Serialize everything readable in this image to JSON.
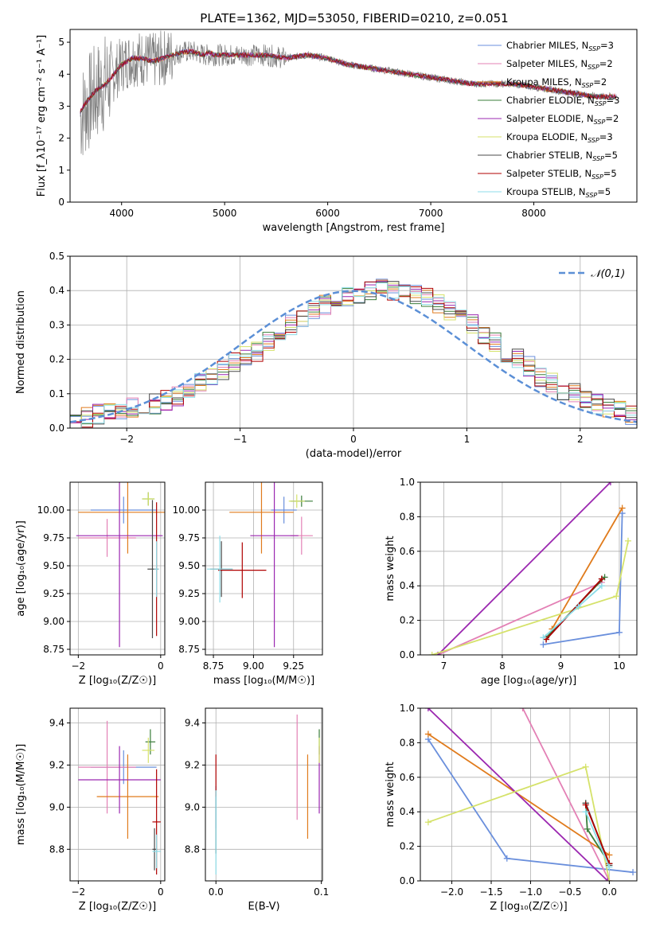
{
  "figure_title": "PLATE=1362, MJD=53050, FIBERID=0210, z=0.051",
  "series_colors": [
    "#6a8fdc",
    "#e380b5",
    "#e07b1c",
    "#3a7d3a",
    "#9b27b0",
    "#d5e26a",
    "#4a4a4a",
    "#b00000",
    "#8ddde8"
  ],
  "chart_data": [
    {
      "id": "spectrum",
      "type": "line",
      "xlabel": "wavelength [Angstrom, rest frame]",
      "ylabel": "Flux [f_λ10⁻¹⁷ erg cm⁻² s⁻¹ A⁻¹]",
      "xlim": [
        3500,
        9000
      ],
      "ylim": [
        0,
        5.4
      ],
      "xticks": [
        4000,
        5000,
        6000,
        7000,
        8000
      ],
      "yticks": [
        0,
        1,
        2,
        3,
        4,
        5
      ],
      "grid": false,
      "legend_position": "top-right",
      "legend": [
        "Chabrier MILES, N_SSP=3",
        "Salpeter MILES, N_SSP=2",
        "Kroupa MILES, N_SSP=2",
        "Chabrier ELODIE, N_SSP=3",
        "Salpeter ELODIE, N_SSP=2",
        "Kroupa ELODIE, N_SSP=3",
        "Chabrier STELIB, N_SSP=5",
        "Salpeter STELIB, N_SSP=5",
        "Kroupa STELIB, N_SSP=5"
      ],
      "observed": {
        "x": [
          3600,
          3700,
          3800,
          3900,
          4000,
          4100,
          4200,
          4300,
          4400,
          4500,
          4600,
          4700,
          4800,
          4900,
          5000,
          5200,
          5400,
          5600,
          5800,
          6000,
          6200,
          6400,
          6600,
          6800,
          7000,
          7200,
          7400,
          7600,
          7800,
          8000,
          8200,
          8400,
          8600,
          8800
        ],
        "y": [
          2.7,
          3.2,
          3.6,
          3.9,
          4.3,
          4.5,
          4.5,
          4.4,
          4.5,
          4.6,
          4.7,
          4.7,
          4.6,
          4.6,
          4.6,
          4.6,
          4.6,
          4.5,
          4.6,
          4.5,
          4.3,
          4.2,
          4.1,
          4.0,
          3.9,
          3.8,
          3.7,
          3.7,
          3.7,
          3.6,
          3.5,
          3.4,
          3.3,
          3.3
        ]
      },
      "model": {
        "x": [
          3600,
          3650,
          3700,
          3750,
          3800,
          3850,
          3900,
          3950,
          4000,
          4100,
          4200,
          4300,
          4400,
          4500,
          4600,
          4700,
          4800,
          4850,
          4900,
          5000,
          5200,
          5400,
          5600,
          5800,
          6000,
          6200,
          6400,
          6600,
          6800,
          7000,
          7200,
          7400,
          7600,
          7800,
          8000,
          8200,
          8400,
          8600,
          8800
        ],
        "y": [
          2.8,
          3.1,
          3.3,
          3.5,
          3.6,
          3.7,
          3.9,
          4.1,
          4.3,
          4.5,
          4.5,
          4.4,
          4.5,
          4.6,
          4.7,
          4.7,
          4.6,
          4.7,
          4.6,
          4.6,
          4.6,
          4.6,
          4.5,
          4.6,
          4.5,
          4.3,
          4.2,
          4.1,
          4.0,
          3.9,
          3.8,
          3.7,
          3.7,
          3.7,
          3.6,
          3.5,
          3.4,
          3.3,
          3.3
        ]
      }
    },
    {
      "id": "residual-histogram",
      "type": "bar",
      "xlabel": "(data-model)/error",
      "ylabel": "Normed distribution",
      "xlim": [
        -2.5,
        2.5
      ],
      "ylim": [
        0,
        0.5
      ],
      "xticks": [
        -2,
        -1,
        0,
        1,
        2
      ],
      "yticks": [
        0.0,
        0.1,
        0.2,
        0.3,
        0.4,
        0.5
      ],
      "grid": true,
      "legend_position": "top-right",
      "legend": [
        "𝒩(0,1)"
      ],
      "bin_width": 0.1,
      "histogram": [
        0.02,
        0.03,
        0.04,
        0.05,
        0.05,
        0.06,
        0.06,
        0.07,
        0.08,
        0.09,
        0.11,
        0.13,
        0.15,
        0.17,
        0.19,
        0.21,
        0.22,
        0.25,
        0.27,
        0.3,
        0.32,
        0.34,
        0.36,
        0.37,
        0.38,
        0.39,
        0.4,
        0.41,
        0.4,
        0.4,
        0.39,
        0.38,
        0.36,
        0.34,
        0.32,
        0.3,
        0.27,
        0.25,
        0.22,
        0.2,
        0.18,
        0.15,
        0.13,
        0.11,
        0.1,
        0.08,
        0.07,
        0.06,
        0.05,
        0.04
      ]
    },
    {
      "id": "age-vs-metallicity",
      "type": "scatter",
      "xlabel": "Z [log₁₀(Z/Z☉)]",
      "ylabel": "age  [log₁₀(age/yr)]",
      "xlim": [
        -2.2,
        0.1
      ],
      "ylim": [
        8.7,
        10.25
      ],
      "xticks": [
        -2,
        0
      ],
      "yticks": [
        8.75,
        9.0,
        9.25,
        9.5,
        9.75,
        10.0
      ],
      "grid": true,
      "errorbars": [
        {
          "series": 0,
          "x": -0.9,
          "y": 10.0,
          "xerr": 0.8,
          "yerr": 0.12
        },
        {
          "series": 1,
          "x": -1.3,
          "y": 9.75,
          "xerr": 0.7,
          "yerr": 0.17
        },
        {
          "series": 2,
          "x": -0.8,
          "y": 9.98,
          "xerr": 1.2,
          "yerr": 0.37
        },
        {
          "series": 3,
          "x": -0.3,
          "y": 10.1,
          "xerr": 0.15,
          "yerr": 0.06
        },
        {
          "series": 4,
          "x": -1.0,
          "y": 9.77,
          "xerr": 1.05,
          "yerr": 1.0
        },
        {
          "series": 5,
          "x": -0.3,
          "y": 10.1,
          "xerr": 0.15,
          "yerr": 0.06
        },
        {
          "series": 6,
          "x": -0.2,
          "y": 9.47,
          "xerr": 0.12,
          "yerr": 0.62
        },
        {
          "series": 7,
          "x": -0.1,
          "y": 9.47,
          "xerr": 0.05,
          "yerr": 0.6
        },
        {
          "series": 8,
          "x": -0.1,
          "y": 9.47,
          "xerr": 0.06,
          "yerr": 0.25
        }
      ]
    },
    {
      "id": "age-vs-mass",
      "type": "scatter",
      "xlabel": "mass [log₁₀(M/M☉)]",
      "ylabel": "",
      "xlim": [
        8.7,
        9.43
      ],
      "ylim": [
        8.7,
        10.25
      ],
      "xticks": [
        8.75,
        9.0,
        9.25
      ],
      "yticks": [
        8.75,
        9.0,
        9.25,
        9.5,
        9.75,
        10.0
      ],
      "grid": true,
      "errorbars": [
        {
          "series": 0,
          "x": 9.19,
          "y": 10.0,
          "xerr": 0.08,
          "yerr": 0.12
        },
        {
          "series": 1,
          "x": 9.3,
          "y": 9.77,
          "xerr": 0.07,
          "yerr": 0.17
        },
        {
          "series": 2,
          "x": 9.05,
          "y": 9.98,
          "xerr": 0.2,
          "yerr": 0.37
        },
        {
          "series": 3,
          "x": 9.3,
          "y": 10.08,
          "xerr": 0.07,
          "yerr": 0.05
        },
        {
          "series": 4,
          "x": 9.13,
          "y": 9.77,
          "xerr": 0.15,
          "yerr": 1.0
        },
        {
          "series": 5,
          "x": 9.27,
          "y": 10.08,
          "xerr": 0.05,
          "yerr": 0.06
        },
        {
          "series": 6,
          "x": 8.8,
          "y": 9.47,
          "xerr": 0.07,
          "yerr": 0.25
        },
        {
          "series": 7,
          "x": 8.93,
          "y": 9.46,
          "xerr": 0.15,
          "yerr": 0.25
        },
        {
          "series": 8,
          "x": 8.79,
          "y": 9.47,
          "xerr": 0.08,
          "yerr": 0.3
        }
      ]
    },
    {
      "id": "mass-weight-vs-age",
      "type": "line",
      "xlabel": "age  [log₁₀(age/yr)]",
      "ylabel": "mass weight",
      "xlim": [
        6.6,
        10.3
      ],
      "ylim": [
        0,
        1.0
      ],
      "xticks": [
        7,
        8,
        9,
        10
      ],
      "yticks": [
        0.0,
        0.2,
        0.4,
        0.6,
        0.8,
        1.0
      ],
      "grid": true,
      "series": [
        {
          "series": 0,
          "x": [
            8.7,
            10.0,
            10.05
          ],
          "y": [
            0.06,
            0.13,
            0.82
          ]
        },
        {
          "series": 1,
          "x": [
            6.9,
            9.7
          ],
          "y": [
            0.0,
            0.42
          ]
        },
        {
          "series": 2,
          "x": [
            8.85,
            10.05
          ],
          "y": [
            0.15,
            0.85
          ]
        },
        {
          "series": 3,
          "x": [
            8.75,
            9.75
          ],
          "y": [
            0.1,
            0.45
          ]
        },
        {
          "series": 4,
          "x": [
            6.9,
            9.85
          ],
          "y": [
            0.0,
            1.0
          ]
        },
        {
          "series": 5,
          "x": [
            6.8,
            9.95,
            10.15
          ],
          "y": [
            0.0,
            0.34,
            0.66
          ]
        },
        {
          "series": 6,
          "x": [
            8.75,
            9.7
          ],
          "y": [
            0.09,
            0.44
          ]
        },
        {
          "series": 7,
          "x": [
            8.75,
            9.7
          ],
          "y": [
            0.09,
            0.44
          ]
        },
        {
          "series": 8,
          "x": [
            8.7,
            9.3,
            9.7
          ],
          "y": [
            0.1,
            0.28,
            0.4
          ]
        }
      ]
    },
    {
      "id": "mass-vs-metallicity",
      "type": "scatter",
      "xlabel": "Z [log₁₀(Z/Z☉)]",
      "ylabel": "mass [log₁₀(M/M☉)]",
      "xlim": [
        -2.2,
        0.1
      ],
      "ylim": [
        8.65,
        9.47
      ],
      "xticks": [
        -2,
        0
      ],
      "yticks": [
        8.8,
        9.0,
        9.2,
        9.4
      ],
      "grid": true,
      "errorbars": [
        {
          "series": 0,
          "x": -0.9,
          "y": 9.19,
          "xerr": 0.8,
          "yerr": 0.08
        },
        {
          "series": 1,
          "x": -1.3,
          "y": 9.19,
          "xerr": 0.7,
          "yerr": 0.22
        },
        {
          "series": 2,
          "x": -0.8,
          "y": 9.05,
          "xerr": 0.75,
          "yerr": 0.2
        },
        {
          "series": 3,
          "x": -0.25,
          "y": 9.31,
          "xerr": 0.12,
          "yerr": 0.06
        },
        {
          "series": 4,
          "x": -1.0,
          "y": 9.13,
          "xerr": 1.0,
          "yerr": 0.16
        },
        {
          "series": 5,
          "x": -0.3,
          "y": 9.27,
          "xerr": 0.15,
          "yerr": 0.06
        },
        {
          "series": 6,
          "x": -0.15,
          "y": 8.8,
          "xerr": 0.05,
          "yerr": 0.1
        },
        {
          "series": 7,
          "x": -0.1,
          "y": 8.93,
          "xerr": 0.1,
          "yerr": 0.25
        },
        {
          "series": 8,
          "x": -0.1,
          "y": 8.79,
          "xerr": 0.1,
          "yerr": 0.08
        }
      ]
    },
    {
      "id": "mass-vs-reddening",
      "type": "scatter",
      "xlabel": "E(B-V)",
      "ylabel": "",
      "xlim": [
        -0.01,
        0.101
      ],
      "ylim": [
        8.65,
        9.47
      ],
      "xticks": [
        0.0,
        0.1
      ],
      "yticks": [
        8.8,
        9.0,
        9.2,
        9.4
      ],
      "grid": true,
      "errorbars": [
        {
          "series": 0,
          "x": 0.0,
          "y": 9.0,
          "xerr": 0,
          "yerr": 0.1
        },
        {
          "series": 1,
          "x": 0.077,
          "y": 9.19,
          "xerr": 0,
          "yerr": 0.25
        },
        {
          "series": 2,
          "x": 0.087,
          "y": 9.05,
          "xerr": 0,
          "yerr": 0.2
        },
        {
          "series": 3,
          "x": 0.098,
          "y": 9.31,
          "xerr": 0,
          "yerr": 0.06
        },
        {
          "series": 4,
          "x": 0.098,
          "y": 9.13,
          "xerr": 0,
          "yerr": 0.16
        },
        {
          "series": 5,
          "x": 0.098,
          "y": 9.27,
          "xerr": 0,
          "yerr": 0.06
        },
        {
          "series": 6,
          "x": 0.0,
          "y": 8.93,
          "xerr": 0,
          "yerr": 0.15
        },
        {
          "series": 7,
          "x": 0.0,
          "y": 9.15,
          "xerr": 0,
          "yerr": 0.1
        },
        {
          "series": 8,
          "x": 0.0,
          "y": 8.88,
          "xerr": 0,
          "yerr": 0.2
        }
      ]
    },
    {
      "id": "mass-weight-vs-metallicity",
      "type": "line",
      "xlabel": "Z [log₁₀(Z/Z☉)]",
      "ylabel": "mass weight",
      "xlim": [
        -2.4,
        0.35
      ],
      "ylim": [
        0,
        1.0
      ],
      "xticks": [
        -2.0,
        -1.5,
        -1.0,
        -0.5,
        0.0
      ],
      "yticks": [
        0.0,
        0.2,
        0.4,
        0.6,
        0.8,
        1.0
      ],
      "grid": true,
      "series": [
        {
          "series": 0,
          "x": [
            -2.3,
            -1.3,
            0.3
          ],
          "y": [
            0.82,
            0.13,
            0.05
          ]
        },
        {
          "series": 1,
          "x": [
            -1.1,
            0.0
          ],
          "y": [
            1.0,
            0.0
          ]
        },
        {
          "series": 2,
          "x": [
            -2.3,
            0.0
          ],
          "y": [
            0.85,
            0.15
          ]
        },
        {
          "series": 3,
          "x": [
            -0.3,
            -0.28,
            0.0
          ],
          "y": [
            0.45,
            0.3,
            0.1
          ]
        },
        {
          "series": 4,
          "x": [
            -2.3,
            -0.02
          ],
          "y": [
            1.0,
            0.0
          ]
        },
        {
          "series": 5,
          "x": [
            -2.3,
            -0.3,
            0.0
          ],
          "y": [
            0.34,
            0.66,
            0.0
          ]
        },
        {
          "series": 6,
          "x": [
            -0.3,
            0.0
          ],
          "y": [
            0.45,
            0.09
          ]
        },
        {
          "series": 7,
          "x": [
            -0.3,
            0.0
          ],
          "y": [
            0.44,
            0.1
          ]
        },
        {
          "series": 8,
          "x": [
            -0.3,
            0.0
          ],
          "y": [
            0.4,
            0.08
          ]
        }
      ]
    }
  ]
}
